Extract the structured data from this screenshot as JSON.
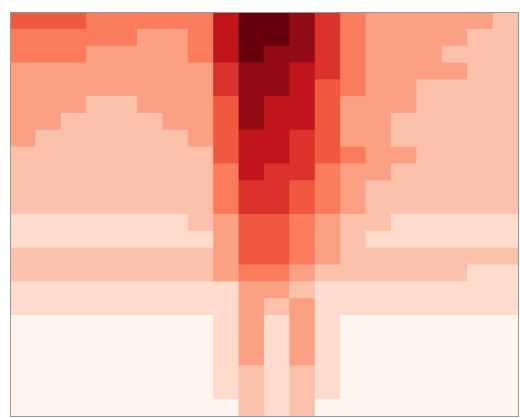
{
  "chart_data": {
    "type": "heatmap",
    "colormap": [
      "#fff5f0",
      "#fcbba1",
      "#fb6a4a",
      "#cb181d",
      "#67000d"
    ],
    "vlim": [
      0,
      9
    ],
    "z": [
      [
        5,
        5,
        5,
        4,
        4,
        4,
        4,
        4,
        7,
        9,
        9,
        8,
        6,
        4,
        3,
        3,
        3,
        3,
        3,
        2
      ],
      [
        4,
        4,
        4,
        4,
        4,
        3,
        3,
        4,
        7,
        9,
        9,
        8,
        6,
        4,
        3,
        3,
        3,
        3,
        2,
        2
      ],
      [
        4,
        4,
        4,
        3,
        3,
        3,
        3,
        4,
        7,
        9,
        8,
        8,
        6,
        4,
        3,
        3,
        3,
        2,
        2,
        2
      ],
      [
        3,
        3,
        3,
        3,
        3,
        3,
        3,
        3,
        6,
        8,
        8,
        7,
        6,
        4,
        3,
        3,
        3,
        3,
        2,
        2
      ],
      [
        3,
        3,
        3,
        3,
        3,
        3,
        3,
        3,
        6,
        8,
        8,
        7,
        5,
        4,
        3,
        3,
        2,
        2,
        2,
        2
      ],
      [
        3,
        3,
        3,
        2,
        2,
        3,
        3,
        3,
        5,
        8,
        7,
        7,
        5,
        3,
        3,
        3,
        2,
        2,
        2,
        2
      ],
      [
        3,
        3,
        2,
        2,
        2,
        2,
        3,
        3,
        5,
        8,
        7,
        7,
        5,
        3,
        3,
        2,
        2,
        2,
        2,
        2
      ],
      [
        3,
        2,
        2,
        2,
        2,
        2,
        2,
        3,
        5,
        7,
        7,
        6,
        5,
        3,
        3,
        2,
        2,
        2,
        2,
        2
      ],
      [
        2,
        2,
        2,
        2,
        2,
        2,
        2,
        2,
        5,
        7,
        7,
        6,
        5,
        4,
        3,
        3,
        2,
        2,
        2,
        2
      ],
      [
        2,
        2,
        2,
        2,
        2,
        2,
        2,
        2,
        4,
        7,
        6,
        6,
        4,
        3,
        3,
        2,
        2,
        2,
        2,
        2
      ],
      [
        2,
        2,
        2,
        2,
        2,
        2,
        2,
        2,
        4,
        6,
        6,
        5,
        4,
        3,
        2,
        2,
        2,
        2,
        2,
        2
      ],
      [
        2,
        2,
        2,
        2,
        2,
        2,
        2,
        2,
        4,
        6,
        6,
        5,
        4,
        3,
        2,
        2,
        2,
        2,
        2,
        2
      ],
      [
        1,
        1,
        1,
        1,
        1,
        1,
        1,
        2,
        3,
        5,
        5,
        4,
        3,
        2,
        2,
        1,
        1,
        1,
        1,
        1
      ],
      [
        1,
        1,
        1,
        1,
        1,
        1,
        1,
        1,
        3,
        5,
        5,
        4,
        3,
        2,
        1,
        1,
        1,
        1,
        1,
        1
      ],
      [
        2,
        2,
        2,
        2,
        2,
        2,
        2,
        2,
        3,
        5,
        5,
        4,
        3,
        2,
        2,
        2,
        2,
        2,
        2,
        2
      ],
      [
        2,
        2,
        2,
        2,
        2,
        2,
        2,
        2,
        3,
        4,
        4,
        3,
        2,
        2,
        2,
        2,
        2,
        2,
        1,
        1
      ],
      [
        1,
        1,
        1,
        1,
        1,
        1,
        1,
        1,
        1,
        3,
        3,
        2,
        1,
        1,
        1,
        1,
        1,
        1,
        1,
        1
      ],
      [
        1,
        1,
        1,
        1,
        1,
        1,
        1,
        1,
        1,
        3,
        2,
        3,
        1,
        1,
        1,
        1,
        1,
        1,
        1,
        1
      ],
      [
        0,
        0,
        0,
        0,
        0,
        0,
        0,
        0,
        1,
        3,
        1,
        3,
        1,
        0,
        0,
        0,
        0,
        0,
        0,
        0
      ],
      [
        0,
        0,
        0,
        0,
        0,
        0,
        0,
        0,
        1,
        3,
        1,
        3,
        1,
        0,
        0,
        0,
        0,
        0,
        0,
        0
      ],
      [
        0,
        0,
        0,
        0,
        0,
        0,
        0,
        0,
        1,
        3,
        1,
        3,
        1,
        0,
        0,
        0,
        0,
        0,
        0,
        0
      ],
      [
        0,
        0,
        0,
        0,
        0,
        0,
        0,
        0,
        1,
        2,
        1,
        2,
        1,
        0,
        0,
        0,
        0,
        0,
        0,
        0
      ],
      [
        0,
        0,
        0,
        0,
        0,
        0,
        0,
        0,
        1,
        2,
        1,
        2,
        1,
        0,
        0,
        0,
        0,
        0,
        0,
        0
      ],
      [
        0,
        0,
        0,
        0,
        0,
        0,
        0,
        0,
        0,
        2,
        1,
        2,
        0,
        0,
        0,
        0,
        0,
        0,
        0,
        0
      ]
    ]
  }
}
